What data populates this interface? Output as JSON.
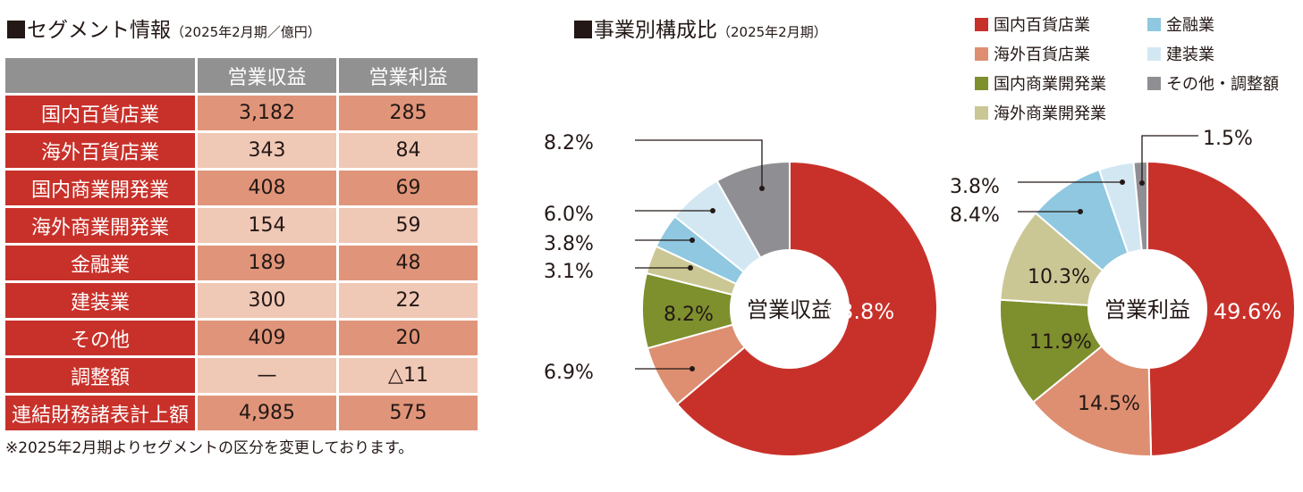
{
  "segment_info": {
    "title": "セグメント情報",
    "subtitle": "（2025年2月期／億円）",
    "headers": [
      "営業収益",
      "営業利益"
    ],
    "rows": [
      {
        "label": "国内百貨店業",
        "revenue": "3,182",
        "profit": "285"
      },
      {
        "label": "海外百貨店業",
        "revenue": "343",
        "profit": "84"
      },
      {
        "label": "国内商業開発業",
        "revenue": "408",
        "profit": "69"
      },
      {
        "label": "海外商業開発業",
        "revenue": "154",
        "profit": "59"
      },
      {
        "label": "金融業",
        "revenue": "189",
        "profit": "48"
      },
      {
        "label": "建装業",
        "revenue": "300",
        "profit": "22"
      },
      {
        "label": "その他",
        "revenue": "409",
        "profit": "20"
      },
      {
        "label": "調整額",
        "revenue": "—",
        "profit": "△11"
      },
      {
        "label": "連結財務諸表計上額",
        "revenue": "4,985",
        "profit": "575"
      }
    ],
    "note": "※2025年2月期よりセグメントの区分を変更しております。"
  },
  "composition": {
    "title": "事業別構成比",
    "subtitle": "（2025年2月期）"
  },
  "colors": {
    "国内百貨店業": "#c8312a",
    "海外百貨店業": "#de8f72",
    "国内商業開発業": "#7e8f2e",
    "海外商業開発業": "#cbc795",
    "金融業": "#8fc8e0",
    "建装業": "#d3e7f3",
    "その他・調整額": "#8f8f93"
  },
  "chart_data": [
    {
      "type": "pie",
      "center_label": "営業収益",
      "categories": [
        "国内百貨店業",
        "海外百貨店業",
        "国内商業開発業",
        "海外商業開発業",
        "金融業",
        "建装業",
        "その他・調整額"
      ],
      "values": [
        63.8,
        6.9,
        8.2,
        3.1,
        3.8,
        6.0,
        8.2
      ],
      "labels": [
        "63.8%",
        "6.9%",
        "8.2%",
        "3.1%",
        "3.8%",
        "6.0%",
        "8.2%"
      ]
    },
    {
      "type": "pie",
      "center_label": "営業利益",
      "categories": [
        "国内百貨店業",
        "海外百貨店業",
        "国内商業開発業",
        "海外商業開発業",
        "金融業",
        "建装業",
        "その他・調整額"
      ],
      "values": [
        49.6,
        14.5,
        11.9,
        10.3,
        8.4,
        3.8,
        1.5
      ],
      "labels": [
        "49.6%",
        "14.5%",
        "11.9%",
        "10.3%",
        "8.4%",
        "3.8%",
        "1.5%"
      ]
    }
  ]
}
